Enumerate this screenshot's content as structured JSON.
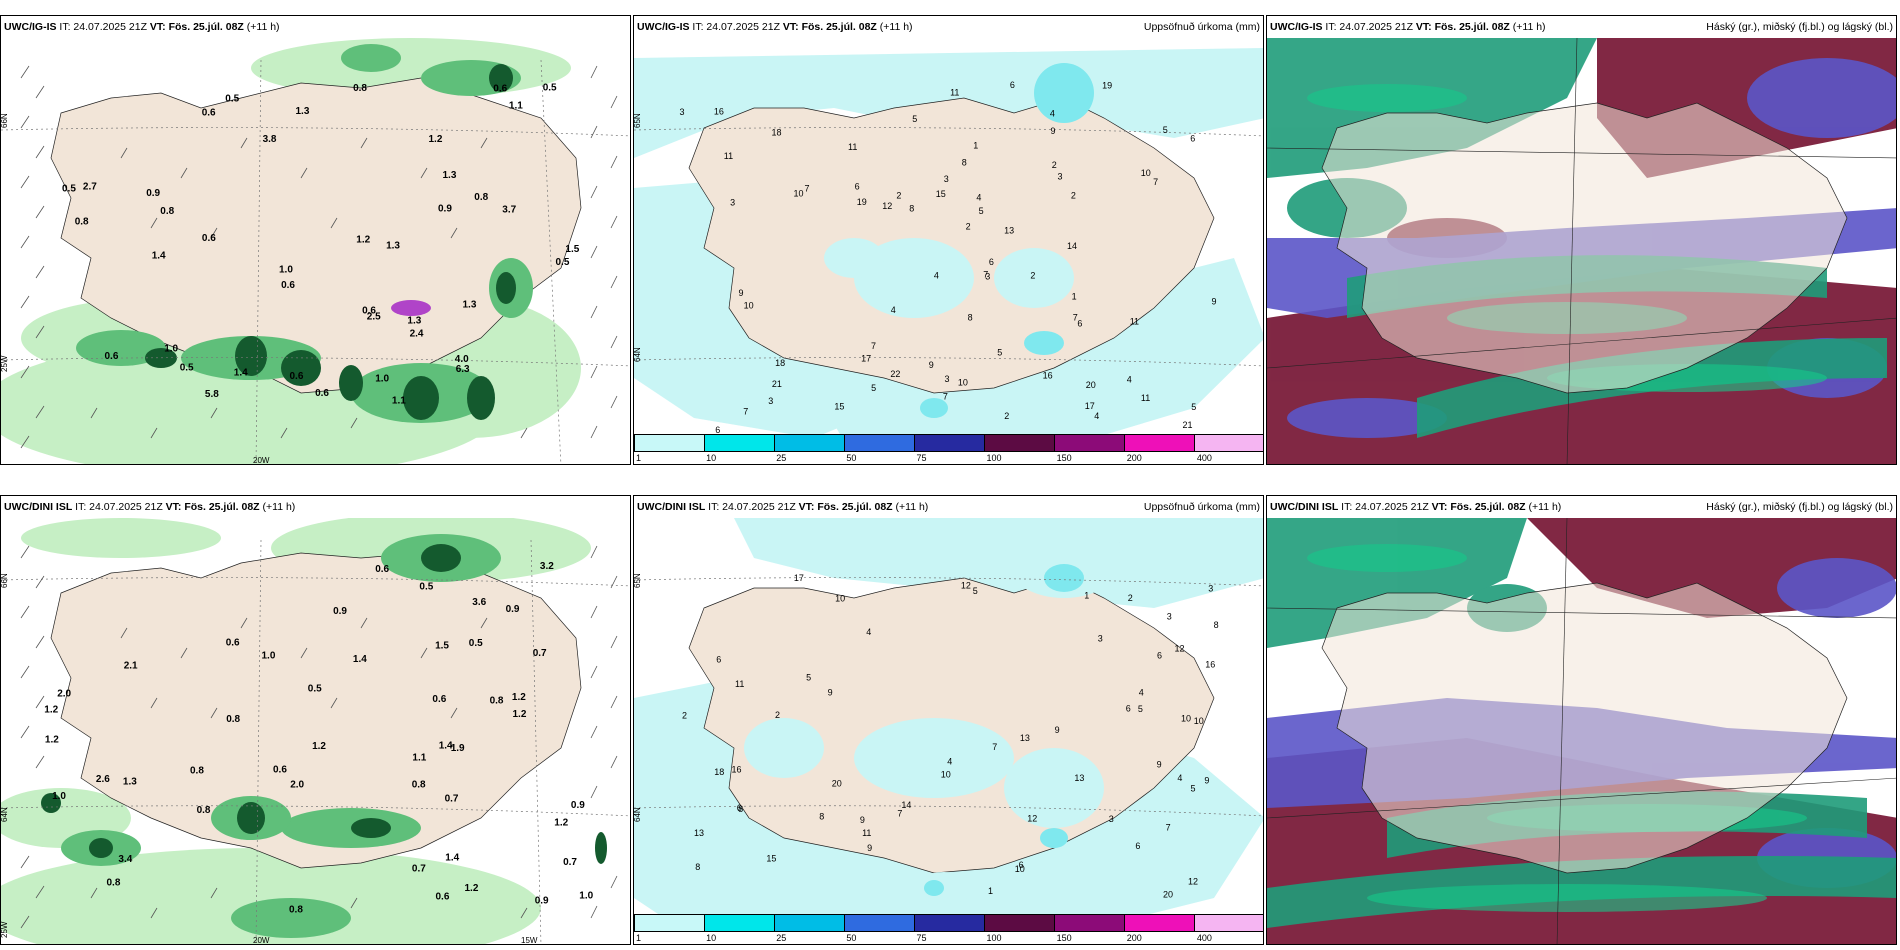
{
  "colors": {
    "land": "#f2e5d8",
    "sea": "#ffffff",
    "precip_light": "#c9f5f5",
    "precip_mid": "#7fe8ee",
    "green_light": "#c6efc5",
    "green_mid": "#5fbf7a",
    "green_dark": "#145a2e",
    "cloud_high": "#1f9c7a",
    "cloud_mid": "#5b55c8",
    "cloud_low": "#7a1c3a"
  },
  "panels": {
    "top_wind": {
      "title_model": "UWC/IG-IS",
      "title_it": " IT: 24.07.2025 21Z ",
      "title_vt_label": "VT:",
      "title_vt_date": " Fös. 25.júl. 08Z",
      "title_step": " (+11 h)",
      "axis_lat": "66N",
      "axis_lon_w": "25W",
      "axis_lon_b": "20W",
      "labels": [
        "1.1",
        "0.6",
        "1.0",
        "0.9",
        "0.8",
        "1.0",
        "0.5",
        "0.6",
        "0.6",
        "0.5",
        "0.6",
        "0.5",
        "1.0",
        "0.6",
        "0.9",
        "0.6",
        "0.8",
        "1.1",
        "1.3",
        "3.7",
        "4.0",
        "2.5",
        "5.8",
        "6.3",
        "1.3",
        "1.3",
        "1.4",
        "0.8",
        "0.6",
        "3.8",
        "2.4",
        "0.5",
        "1.2",
        "1.4",
        "0.5",
        "0.6",
        "0.8",
        "2.7",
        "1.5",
        "1.3",
        "1.3",
        "1.2"
      ]
    },
    "top_precip": {
      "title_model": "UWC/IG-IS",
      "title_it": " IT: 24.07.2025 21Z ",
      "title_vt_label": "VT:",
      "title_vt_date": " Fös. 25.júl. 08Z",
      "title_step": " (+11 h)",
      "title_right": "Uppsöfnuð úrkoma (mm)",
      "axis_lat": "65N",
      "axis_lon": "64N",
      "labels": [
        "7",
        "11",
        "6",
        "8",
        "5",
        "6",
        "4",
        "4",
        "20",
        "17",
        "21",
        "19",
        "22",
        "11",
        "16",
        "6",
        "7",
        "10",
        "4",
        "6",
        "3",
        "3",
        "7",
        "2",
        "6",
        "9",
        "2",
        "8",
        "7",
        "5",
        "11",
        "4",
        "1",
        "6",
        "7",
        "2",
        "3",
        "2",
        "3",
        "9",
        "10",
        "7",
        "11",
        "5",
        "14",
        "12",
        "3",
        "10",
        "9",
        "5",
        "11",
        "15",
        "16",
        "17",
        "18",
        "18",
        "10",
        "8",
        "13",
        "1",
        "5",
        "2",
        "3",
        "5",
        "4",
        "9",
        "19",
        "21",
        "15",
        "4",
        "7",
        "3",
        "2"
      ]
    },
    "top_cloud": {
      "title_model": "UWC/IG-IS",
      "title_it": " IT: 24.07.2025 21Z ",
      "title_vt_label": "VT:",
      "title_vt_date": " Fös. 25.júl. 08Z",
      "title_step": " (+11 h)",
      "title_right": "Háský (gr.), miðský (fj.bl.) og lágský (bl.)"
    },
    "bottom_wind": {
      "title_model": "UWC/DINI ISL",
      "title_it": " IT: 24.07.2025 21Z ",
      "title_vt_label": "VT:",
      "title_vt_date": " Fös. 25.júl. 08Z",
      "title_step": " (+11 h)",
      "axis_lat": "66N",
      "axis_lat2": "64N",
      "axis_lon_w": "25W",
      "axis_lon_b": "20W",
      "axis_lon_c": "15W",
      "labels": [
        "0.8",
        "0.9",
        "0.8",
        "1.2",
        "0.7",
        "0.5",
        "1.2",
        "0.5",
        "0.7",
        "1.2",
        "1.4",
        "1.1",
        "1.0",
        "0.7",
        "0.8",
        "0.9",
        "0.9",
        "2.6",
        "3.6",
        "1.0",
        "2.0",
        "1.2",
        "0.6",
        "0.5",
        "1.2",
        "3.4",
        "2.1",
        "1.5",
        "1.0",
        "1.3",
        "0.7",
        "0.6",
        "2.0",
        "1.4",
        "0.8",
        "0.8",
        "1.4",
        "1.2",
        "1.9",
        "0.6",
        "0.6",
        "0.8",
        "0.9",
        "0.8",
        "1.2",
        "0.6",
        "3.2"
      ]
    },
    "bottom_precip": {
      "title_model": "UWC/DINI ISL",
      "title_it": " IT: 24.07.2025 21Z ",
      "title_vt_label": "VT:",
      "title_vt_date": " Fös. 25.júl. 08Z",
      "title_step": " (+11 h)",
      "title_right": "Uppsöfnuð úrkoma (mm)",
      "axis_lat": "65N",
      "axis_lon": "64N",
      "labels": [
        "5",
        "8",
        "6",
        "9",
        "4",
        "10",
        "20",
        "20",
        "15",
        "17",
        "12",
        "13",
        "13",
        "16",
        "9",
        "10",
        "9",
        "18",
        "6",
        "4",
        "3",
        "2",
        "12",
        "13",
        "8",
        "7",
        "6",
        "12",
        "16",
        "9",
        "5",
        "6",
        "4",
        "14",
        "11",
        "10",
        "12",
        "8",
        "7",
        "3",
        "6",
        "2",
        "1",
        "5",
        "9",
        "10",
        "11",
        "8",
        "10",
        "4",
        "3",
        "2",
        "7",
        "6",
        "5",
        "9",
        "1",
        "3"
      ]
    },
    "bottom_cloud": {
      "title_model": "UWC/DINI ISL",
      "title_it": " IT: 24.07.2025 21Z ",
      "title_vt_label": "VT:",
      "title_vt_date": " Fös. 25.júl. 08Z",
      "title_step": " (+11 h)",
      "title_right": "Háský (gr.), miðský (fj.bl.) og lágský (bl.)"
    }
  },
  "colorbar": {
    "colors": [
      "#c8f8f8",
      "#00e6ea",
      "#00bde6",
      "#2f6be0",
      "#262aa0",
      "#5c0b43",
      "#8c0b78",
      "#ee10b8",
      "#f5b5f2"
    ],
    "ticks": [
      "1",
      "10",
      "25",
      "50",
      "75",
      "100",
      "150",
      "200",
      "400"
    ]
  }
}
